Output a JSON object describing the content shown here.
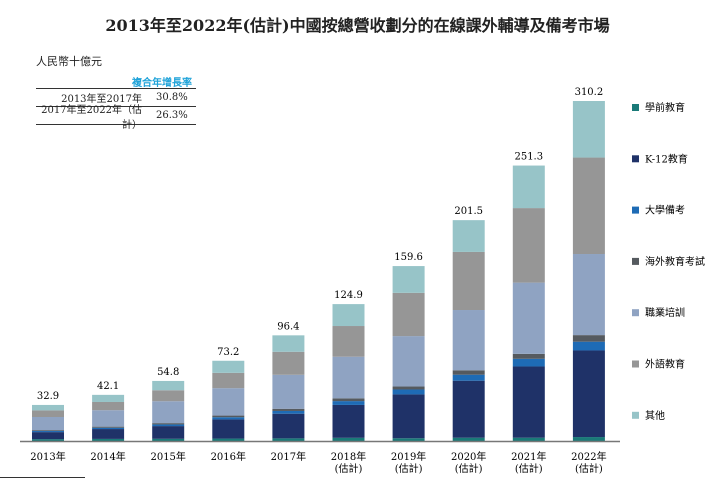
{
  "chart_data": {
    "type": "bar",
    "stacked": true,
    "title": "2013年至2022年(估計)中國按總營收劃分的在線課外輔導及備考市場",
    "unit_label": "人民幣十億元",
    "categories": [
      [
        "2013年"
      ],
      [
        "2014年"
      ],
      [
        "2015年"
      ],
      [
        "2016年"
      ],
      [
        "2017年"
      ],
      [
        "2018年",
        "(估計)"
      ],
      [
        "2019年",
        "(估計)"
      ],
      [
        "2020年",
        "(估計)"
      ],
      [
        "2021年",
        "(估計)"
      ],
      [
        "2022年",
        "(估計)"
      ]
    ],
    "totals": [
      "32.9",
      "42.1",
      "54.8",
      "73.2",
      "96.4",
      "124.9",
      "159.6",
      "201.5",
      "251.3",
      "310.2"
    ],
    "series": [
      {
        "name": "學前教育",
        "color": "#1a7a78",
        "values": [
          1.7,
          1.9,
          2.0,
          2.2,
          2.4,
          2.9,
          2.5,
          3.0,
          3.0,
          3.6
        ]
      },
      {
        "name": "K-12教育",
        "color": "#1f3268",
        "values": [
          6.4,
          9.0,
          11.6,
          17.5,
          22.5,
          30.0,
          40.0,
          52.0,
          65.0,
          79.0
        ]
      },
      {
        "name": "大學備考",
        "color": "#1e6bb5",
        "values": [
          1.0,
          1.2,
          1.5,
          2.0,
          2.5,
          3.5,
          4.5,
          5.5,
          7.0,
          8.0
        ]
      },
      {
        "name": "海外教育考試",
        "color": "#555a5f",
        "values": [
          0.8,
          1.0,
          1.2,
          1.5,
          2.0,
          2.5,
          2.7,
          4.0,
          4.5,
          6.0
        ]
      },
      {
        "name": "職業培訓",
        "color": "#8fa3c2",
        "values": [
          12.0,
          15.0,
          20.0,
          25.0,
          31.0,
          38.0,
          46.0,
          55.0,
          65.0,
          74.0
        ]
      },
      {
        "name": "外語教育",
        "color": "#969696",
        "values": [
          6.0,
          7.5,
          10.0,
          14.0,
          21.0,
          28.0,
          39.5,
          53.0,
          68.0,
          88.0
        ]
      },
      {
        "name": "其他",
        "color": "#97c4c8",
        "values": [
          5.0,
          6.5,
          8.5,
          11.0,
          15.0,
          20.0,
          24.4,
          29.0,
          38.8,
          51.6
        ]
      }
    ],
    "ylim": [
      0,
      310.2
    ],
    "grid": false,
    "legend": "right",
    "cagr_table": {
      "header": "複合年增長率",
      "rows": [
        {
          "period": "2013年至2017年",
          "value": "30.8%"
        },
        {
          "period": "2017年至2022年（估計）",
          "value": "26.3%"
        }
      ]
    }
  }
}
